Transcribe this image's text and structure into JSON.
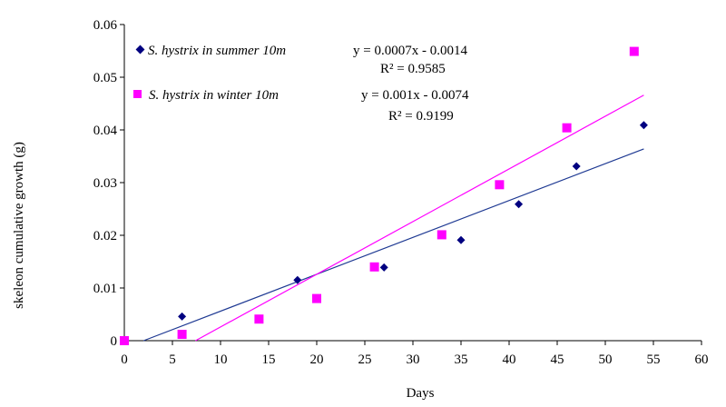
{
  "chart_data": {
    "type": "scatter",
    "xlabel": "Days",
    "ylabel": "skeleon cumulative  growth (g)",
    "xlim": [
      0,
      60
    ],
    "ylim": [
      0,
      0.06
    ],
    "x_ticks": [
      "0",
      "5",
      "10",
      "15",
      "20",
      "25",
      "30",
      "35",
      "40",
      "45",
      "50",
      "55",
      "60"
    ],
    "y_ticks": [
      "0",
      "0.01",
      "0.02",
      "0.03",
      "0.04",
      "0.05",
      "0.06"
    ],
    "grid": false,
    "legend_position": "top-left",
    "series": [
      {
        "name": "S. hystrix in summer 10m",
        "marker": "diamond",
        "color": "#000080",
        "x": [
          0,
          6,
          18,
          27,
          35,
          41,
          47,
          54
        ],
        "y": [
          0,
          0.0046,
          0.0115,
          0.0139,
          0.0191,
          0.0259,
          0.0331,
          0.0409
        ],
        "trendline": {
          "slope": 0.0007,
          "intercept": -0.0014,
          "x_range": [
            2,
            54
          ],
          "color": "#1f3a93"
        },
        "equation": "y = 0.0007x - 0.0014",
        "r2": "R² = 0.9585"
      },
      {
        "name": "S. hystrix in winter  10m",
        "marker": "square",
        "color": "#ff00ff",
        "x": [
          0,
          6,
          14,
          20,
          26,
          33,
          39,
          46,
          53
        ],
        "y": [
          0,
          0.0012,
          0.0041,
          0.008,
          0.014,
          0.0201,
          0.0296,
          0.0404,
          0.0549
        ],
        "trendline": {
          "slope": 0.001,
          "intercept": -0.0074,
          "x_range": [
            7.4,
            54
          ],
          "color": "#ff00ff"
        },
        "equation": "y = 0.001x - 0.0074",
        "r2": "R² = 0.9199"
      }
    ]
  }
}
